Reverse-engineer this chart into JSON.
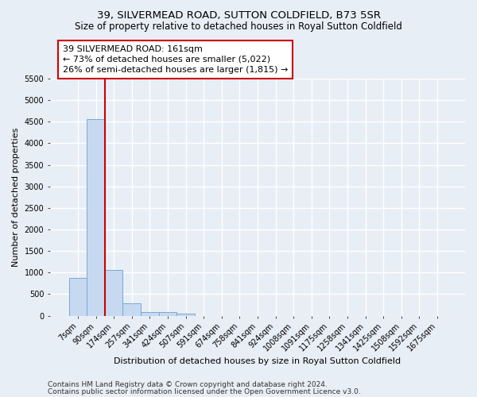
{
  "title1": "39, SILVERMEAD ROAD, SUTTON COLDFIELD, B73 5SR",
  "title2": "Size of property relative to detached houses in Royal Sutton Coldfield",
  "xlabel": "Distribution of detached houses by size in Royal Sutton Coldfield",
  "ylabel": "Number of detached properties",
  "footnote1": "Contains HM Land Registry data © Crown copyright and database right 2024.",
  "footnote2": "Contains public sector information licensed under the Open Government Licence v3.0.",
  "bar_labels": [
    "7sqm",
    "90sqm",
    "174sqm",
    "257sqm",
    "341sqm",
    "424sqm",
    "507sqm",
    "591sqm",
    "674sqm",
    "758sqm",
    "841sqm",
    "924sqm",
    "1008sqm",
    "1091sqm",
    "1175sqm",
    "1258sqm",
    "1341sqm",
    "1425sqm",
    "1508sqm",
    "1592sqm",
    "1675sqm"
  ],
  "bar_values": [
    880,
    4560,
    1060,
    290,
    90,
    90,
    55,
    0,
    0,
    0,
    0,
    0,
    0,
    0,
    0,
    0,
    0,
    0,
    0,
    0,
    0
  ],
  "bar_color": "#c6d9f0",
  "bar_edge_color": "#7aa9d0",
  "vline_x": 1.5,
  "vline_color": "#cc0000",
  "annotation_text": "39 SILVERMEAD ROAD: 161sqm\n← 73% of detached houses are smaller (5,022)\n26% of semi-detached houses are larger (1,815) →",
  "annotation_box_facecolor": "white",
  "annotation_box_edgecolor": "#cc0000",
  "ylim_max": 5500,
  "yticks": [
    0,
    500,
    1000,
    1500,
    2000,
    2500,
    3000,
    3500,
    4000,
    4500,
    5000,
    5500
  ],
  "bg_color": "#e8eef5",
  "grid_color": "white",
  "title1_fontsize": 9.5,
  "title2_fontsize": 8.5,
  "xlabel_fontsize": 8,
  "ylabel_fontsize": 8,
  "tick_fontsize": 7,
  "annotation_fontsize": 8,
  "footnote_fontsize": 6.5
}
